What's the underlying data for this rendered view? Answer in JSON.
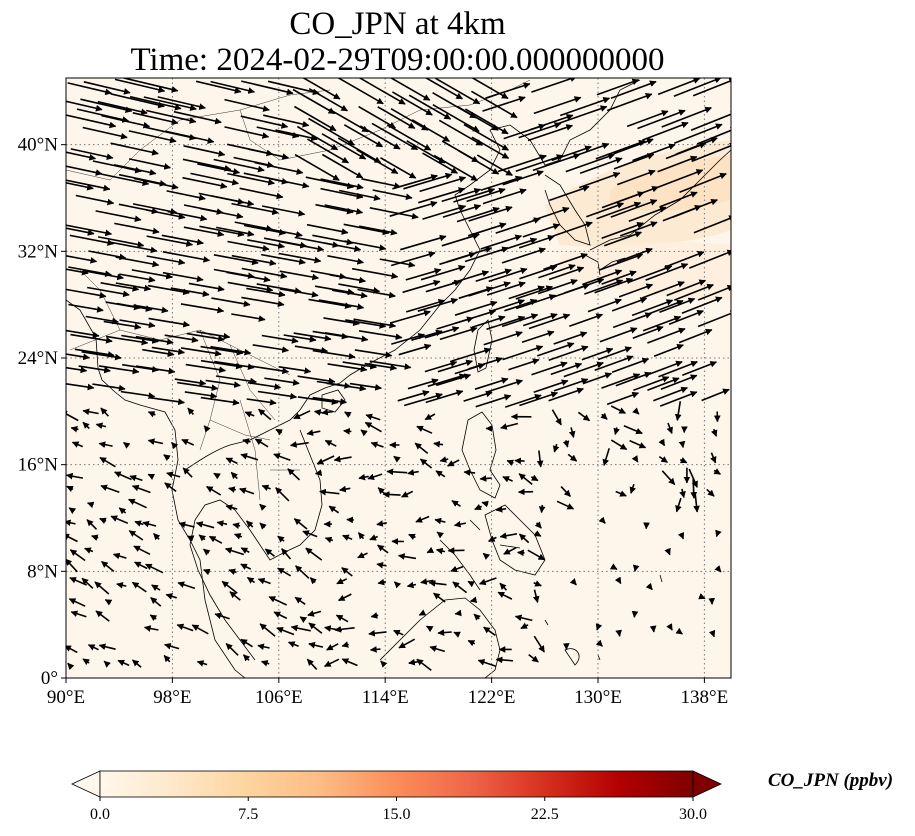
{
  "title": {
    "line1": "CO_JPN at 4km",
    "line2": "Time: 2024-02-29T09:00:00.000000000"
  },
  "map": {
    "lon_range": [
      90,
      140
    ],
    "lat_range": [
      0,
      45
    ],
    "lon_ticks": [
      90,
      98,
      106,
      114,
      122,
      130,
      138
    ],
    "lat_ticks": [
      0,
      8,
      16,
      24,
      32,
      40
    ],
    "lon_tick_labels": [
      "90°E",
      "98°E",
      "106°E",
      "114°E",
      "122°E",
      "130°E",
      "138°E"
    ],
    "lat_tick_labels": [
      "0°",
      "8°N",
      "16°N",
      "24°N",
      "32°N",
      "40°N"
    ],
    "background_color": "#fef6ea",
    "plume_color": "#fde9cf",
    "gridlines": "dotted"
  },
  "colorbar": {
    "label": "CO_JPN (ppbv)",
    "min": 0,
    "max": 30,
    "ticks": [
      0,
      7.5,
      15,
      22.5,
      30
    ],
    "tick_labels": [
      "0.0",
      "7.5",
      "15.0",
      "22.5",
      "30.0"
    ],
    "colormap": "OrRd",
    "extend": "both",
    "stops": [
      "#fff7ec",
      "#fee8c8",
      "#fdd49e",
      "#fdbb84",
      "#fc8d59",
      "#ef6548",
      "#d7301f",
      "#b30000",
      "#7f0000"
    ]
  }
}
